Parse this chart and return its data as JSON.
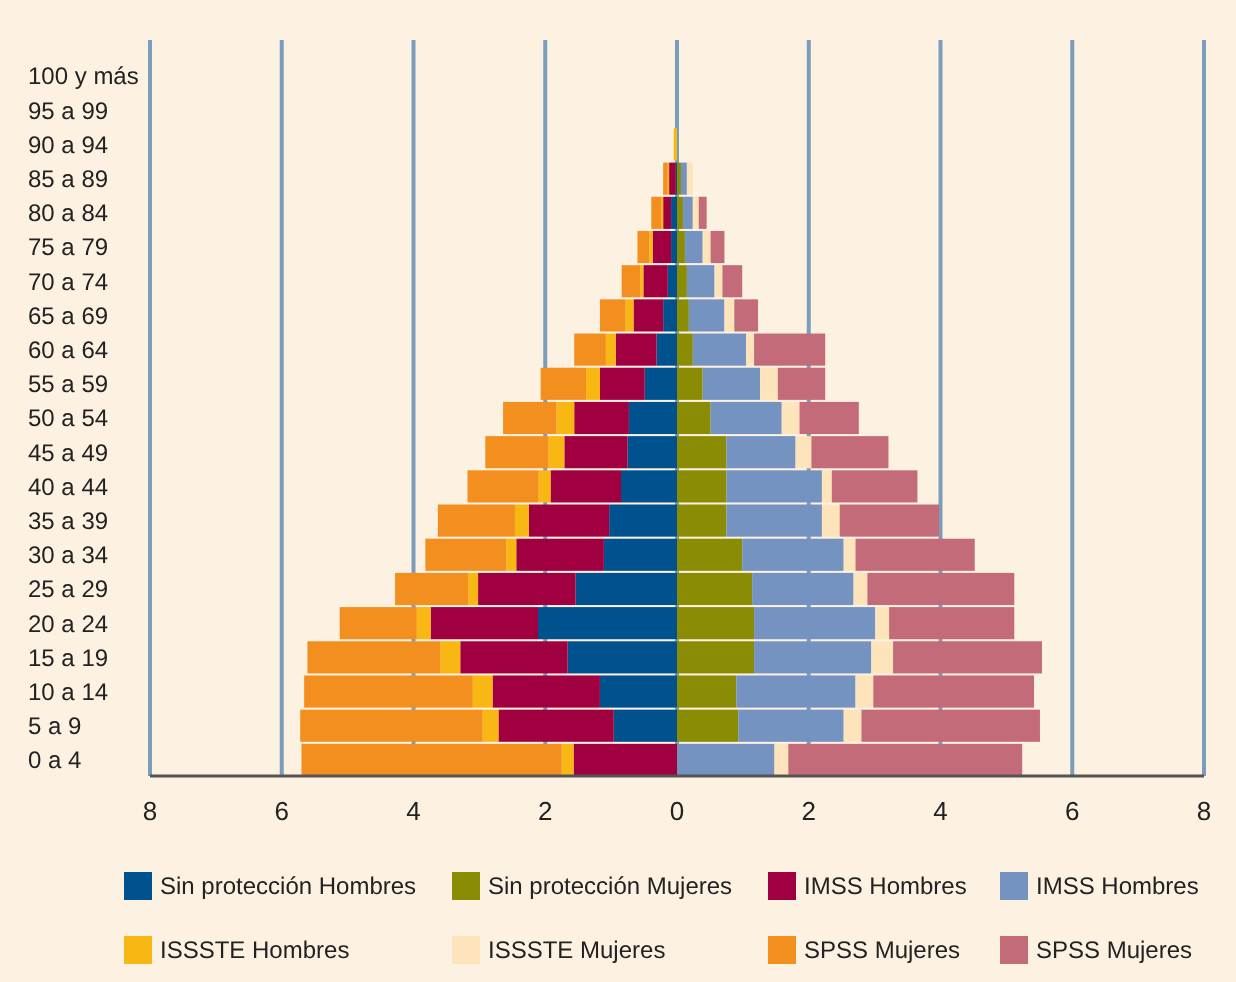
{
  "chart_data": {
    "type": "bar",
    "orientation": "horizontal",
    "stacked": true,
    "categories": [
      "100 y más",
      "95 a 99",
      "90 a 94",
      "85 a 89",
      "80 a 84",
      "75 a 79",
      "70 a 74",
      "65 a 69",
      "60 a 64",
      "55 a 59",
      "50 a 54",
      "45 a 49",
      "40 a 44",
      "35 a 39",
      "30 a 34",
      "25 a 29",
      "20 a 24",
      "15 a 19",
      "10 a 14",
      "5 a 9",
      "0 a 4"
    ],
    "series": [
      {
        "name": "Sin protección Hombres",
        "color": "#00528f",
        "values": [
          null,
          null,
          null,
          -0.02,
          -0.09,
          -0.09,
          -0.14,
          -0.21,
          -0.31,
          -0.49,
          -0.73,
          -0.75,
          -0.85,
          -1.03,
          -1.11,
          -1.54,
          -2.11,
          -1.66,
          -1.17,
          -0.96,
          null
        ]
      },
      {
        "name": "Sin protección Mujeres",
        "color": "#8a8c04",
        "values": [
          null,
          null,
          null,
          0.06,
          0.09,
          0.12,
          0.15,
          0.18,
          0.24,
          0.39,
          0.51,
          0.75,
          0.75,
          0.75,
          0.99,
          1.14,
          1.17,
          1.17,
          0.9,
          0.93,
          null
        ]
      },
      {
        "name": "IMSS Hombres",
        "color": "#a00040",
        "values": [
          null,
          null,
          null,
          -0.1,
          -0.12,
          -0.28,
          -0.37,
          -0.45,
          -0.62,
          -0.68,
          -0.83,
          -0.96,
          -1.07,
          -1.22,
          -1.33,
          -1.48,
          -1.63,
          -1.63,
          -1.63,
          -1.75,
          -1.57
        ]
      },
      {
        "name": "IMSS Hombres",
        "color": "#7593c0",
        "values": [
          null,
          null,
          null,
          0.09,
          0.15,
          0.27,
          0.42,
          0.54,
          0.81,
          0.87,
          1.08,
          1.05,
          1.45,
          1.45,
          1.54,
          1.54,
          1.84,
          1.78,
          1.81,
          1.6,
          1.48
        ]
      },
      {
        "name": "ISSSTE Hombres",
        "color": "#f9b714",
        "values": [
          null,
          null,
          -0.05,
          -0.02,
          -0.03,
          -0.05,
          -0.05,
          -0.12,
          -0.15,
          -0.21,
          -0.27,
          -0.24,
          -0.18,
          -0.21,
          -0.15,
          -0.15,
          -0.21,
          -0.3,
          -0.3,
          -0.24,
          -0.18
        ]
      },
      {
        "name": "ISSSTE Mujeres",
        "color": "#fde4bb",
        "values": [
          null,
          null,
          null,
          0.09,
          0.09,
          0.12,
          0.12,
          0.15,
          0.12,
          0.27,
          0.27,
          0.24,
          0.15,
          0.27,
          0.18,
          0.21,
          0.21,
          0.33,
          0.27,
          0.27,
          0.21
        ]
      },
      {
        "name": "SPSS Mujeres",
        "color": "#f28f1f",
        "values": [
          null,
          null,
          null,
          -0.07,
          -0.15,
          -0.18,
          -0.28,
          -0.39,
          -0.48,
          -0.69,
          -0.81,
          -0.96,
          -1.08,
          -1.17,
          -1.23,
          -1.11,
          -1.17,
          -2.02,
          -2.56,
          -2.77,
          -3.95
        ]
      },
      {
        "name": "SPSS Mujeres",
        "color": "#c46b7a",
        "values": [
          null,
          null,
          null,
          null,
          0.12,
          0.21,
          0.3,
          0.36,
          1.08,
          0.72,
          0.9,
          1.17,
          1.3,
          1.51,
          1.81,
          2.23,
          1.9,
          2.26,
          2.44,
          2.71,
          3.55
        ]
      }
    ],
    "xlim": [
      -8,
      8
    ],
    "xticks": [
      {
        "value": -8,
        "label": "8"
      },
      {
        "value": -6,
        "label": "6"
      },
      {
        "value": -4,
        "label": "4"
      },
      {
        "value": -2,
        "label": "2"
      },
      0,
      2,
      4,
      6,
      8
    ],
    "grid": "x",
    "legend": "bottom"
  }
}
